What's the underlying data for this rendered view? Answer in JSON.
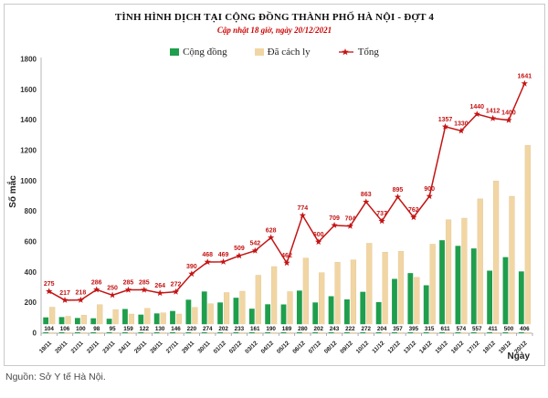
{
  "chart_data": {
    "type": "bar",
    "title": "TÌNH HÌNH DỊCH TẠI CỘNG ĐỒNG THÀNH PHỐ HÀ NỘI - ĐỢT 4",
    "subtitle": "Cập nhật 18 giờ, ngày 20/12/2021",
    "xlabel": "Ngày",
    "ylabel": "Số mắc",
    "ylim": [
      0,
      1800
    ],
    "yticks": [
      0,
      200,
      400,
      600,
      800,
      1000,
      1200,
      1400,
      1600,
      1800
    ],
    "grid": false,
    "legend_position": "top",
    "categories": [
      "19/11",
      "20/11",
      "21/11",
      "22/11",
      "23/11",
      "24/11",
      "25/11",
      "26/11",
      "27/11",
      "29/11",
      "30/11",
      "01/12",
      "02/12",
      "03/12",
      "04/12",
      "05/12",
      "06/12",
      "07/12",
      "08/12",
      "09/12",
      "10/12",
      "11/12",
      "12/12",
      "13/12",
      "14/12",
      "15/12",
      "16/12",
      "17/12",
      "18/12",
      "19/12",
      "20/12"
    ],
    "series": [
      {
        "name": "Cộng đồng",
        "type": "bar",
        "color": "#1f9e4c",
        "values": [
          104,
          106,
          100,
          98,
          95,
          159,
          122,
          130,
          146,
          220,
          274,
          202,
          233,
          161,
          190,
          189,
          280,
          202,
          243,
          222,
          272,
          204,
          357,
          395,
          315,
          611,
          574,
          557,
          411,
          500,
          406
        ],
        "data_labels": "base"
      },
      {
        "name": "Đã cách ly",
        "type": "bar",
        "color": "#f1d6a4",
        "values": [
          171,
          111,
          118,
          188,
          155,
          126,
          163,
          134,
          126,
          170,
          194,
          267,
          276,
          381,
          438,
          273,
          494,
          398,
          466,
          482,
          591,
          533,
          538,
          367,
          585,
          746,
          756,
          883,
          1001,
          900,
          1235
        ],
        "data_labels": "none"
      },
      {
        "name": "Tổng",
        "type": "line",
        "color": "#c41414",
        "marker": "star",
        "values": [
          275,
          217,
          218,
          286,
          250,
          285,
          285,
          264,
          272,
          390,
          468,
          469,
          509,
          542,
          628,
          462,
          774,
          600,
          709,
          704,
          863,
          737,
          895,
          762,
          900,
          1357,
          1330,
          1440,
          1412,
          1400,
          1641
        ],
        "data_labels": "above"
      }
    ]
  },
  "footer": {
    "source": "Nguồn: Sở Y tế Hà Nội."
  }
}
